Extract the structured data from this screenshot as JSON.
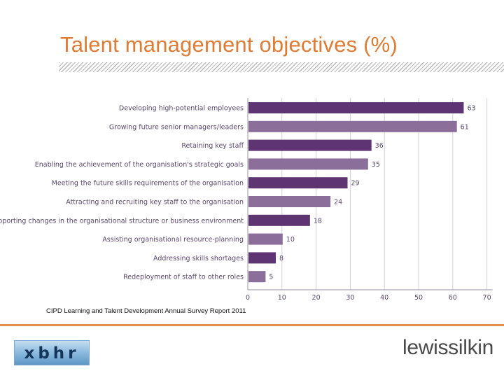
{
  "slide": {
    "title": "Talent management objectives (%)",
    "source": "CIPD Learning and Talent Development Annual Survey Report 2011"
  },
  "logos": {
    "left": "xbhr",
    "right": "lewissilkin"
  },
  "colors": {
    "title": "#e07b33",
    "bar_dark": "#5f3472",
    "bar_light": "#8b6e9a",
    "footer_rule": "#e3904e"
  },
  "chart_data": {
    "type": "bar",
    "orientation": "horizontal",
    "title": "",
    "xlabel": "",
    "ylabel": "",
    "xlim": [
      0,
      70
    ],
    "xticks": [
      0,
      10,
      20,
      30,
      40,
      50,
      60,
      70
    ],
    "grid": true,
    "categories": [
      "Developing high-potential employees",
      "Growing future senior managers/leaders",
      "Retaining key staff",
      "Enabling the achievement of the organisation's strategic goals",
      "Meeting the future skills requirements of the organisation",
      "Attracting and recruiting key staff to the organisation",
      "Supporting changes in the organisational structure or business environment",
      "Assisting organisational resource-planning",
      "Addressing skills shortages",
      "Redeployment of staff to other roles"
    ],
    "values": [
      63,
      61,
      36,
      35,
      29,
      24,
      18,
      10,
      8,
      5
    ]
  }
}
